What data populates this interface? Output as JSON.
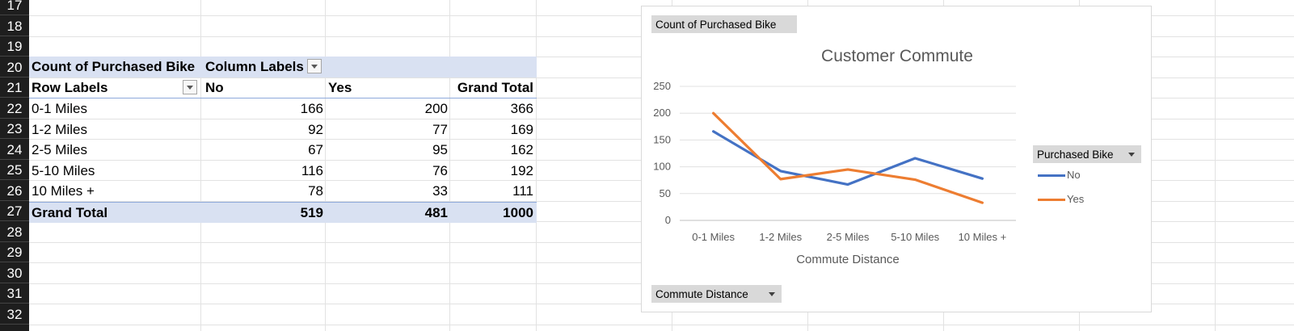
{
  "sheet": {
    "row_numbers": [
      "17",
      "18",
      "19",
      "20",
      "21",
      "22",
      "23",
      "24",
      "25",
      "26",
      "27",
      "28",
      "29",
      "30",
      "31",
      "32"
    ]
  },
  "pivot": {
    "value_field": "Count of Purchased Bike",
    "column_labels": "Column Labels",
    "row_labels": "Row Labels",
    "col_headers": [
      "No",
      "Yes",
      "Grand Total"
    ],
    "rows": [
      {
        "label": "0-1 Miles",
        "no": "166",
        "yes": "200",
        "total": "366"
      },
      {
        "label": "1-2 Miles",
        "no": "92",
        "yes": "77",
        "total": "169"
      },
      {
        "label": "2-5 Miles",
        "no": "67",
        "yes": "95",
        "total": "162"
      },
      {
        "label": "5-10 Miles",
        "no": "116",
        "yes": "76",
        "total": "192"
      },
      {
        "label": "10 Miles +",
        "no": "78",
        "yes": "33",
        "total": "111"
      }
    ],
    "grand_total": {
      "label": "Grand Total",
      "no": "519",
      "yes": "481",
      "total": "1000"
    }
  },
  "chart_buttons": {
    "value_field": "Count of Purchased Bike",
    "legend_field": "Purchased Bike",
    "axis_field": "Commute Distance"
  },
  "colors": {
    "no": "#4472c4",
    "yes": "#ed7d31",
    "header_fill": "#d9e1f2"
  },
  "chart_data": {
    "type": "line",
    "title": "Customer Commute",
    "xlabel": "Commute Distance",
    "ylabel": "",
    "categories": [
      "0-1 Miles",
      "1-2 Miles",
      "2-5 Miles",
      "5-10 Miles",
      "10 Miles +"
    ],
    "series": [
      {
        "name": "No",
        "values": [
          166,
          92,
          67,
          116,
          78
        ]
      },
      {
        "name": "Yes",
        "values": [
          200,
          77,
          95,
          76,
          33
        ]
      }
    ],
    "ylim": [
      0,
      250
    ],
    "yticks": [
      "0",
      "50",
      "100",
      "150",
      "200",
      "250"
    ],
    "grid": true,
    "legend": "right"
  }
}
